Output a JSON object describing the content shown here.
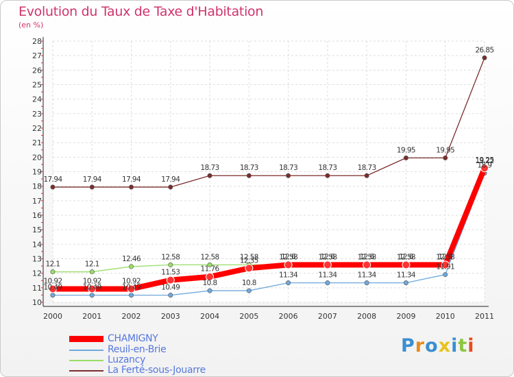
{
  "chart_data": {
    "type": "line",
    "title": "Evolution du Taux de Taxe d'Habitation",
    "subtitle": "(en %)",
    "xlabel": "",
    "ylabel": "",
    "x": [
      "2000",
      "2001",
      "2002",
      "2003",
      "2004",
      "2005",
      "2006",
      "2007",
      "2008",
      "2009",
      "2010",
      "2011"
    ],
    "ylim": [
      10,
      28
    ],
    "yticks": [
      10,
      11,
      12,
      13,
      14,
      15,
      16,
      17,
      18,
      19,
      20,
      21,
      22,
      23,
      24,
      25,
      26,
      27,
      28
    ],
    "grid": true,
    "legend_position": "bottom-left",
    "series": [
      {
        "name": "CHAMIGNY",
        "color": "#ff0000",
        "values": [
          10.92,
          10.92,
          10.92,
          11.53,
          11.76,
          12.35,
          12.58,
          12.58,
          12.58,
          12.58,
          12.58,
          19.25
        ],
        "labels": [
          "10.92",
          "10.92",
          "10.92",
          "11.53",
          "11.76",
          "12.35",
          "12.58",
          "12.58",
          "12.58",
          "12.58",
          "12.58",
          "19.25"
        ]
      },
      {
        "name": "Reuil-en-Brie",
        "color": "#6fa8dc",
        "values": [
          10.49,
          10.49,
          10.49,
          10.49,
          10.8,
          10.8,
          11.34,
          11.34,
          11.34,
          11.34,
          11.91,
          18.9
        ],
        "labels": [
          "10.49",
          "10.49",
          "10.49",
          "10.49",
          "10.8",
          "10.8",
          "11.34",
          "11.34",
          "11.34",
          "11.34",
          "11.91",
          "18.9"
        ]
      },
      {
        "name": "Luzancy",
        "color": "#99dd66",
        "values": [
          12.1,
          12.1,
          12.46,
          12.58,
          12.58,
          12.58,
          12.6,
          12.6,
          12.6,
          12.6,
          12.6,
          19.22
        ],
        "labels": [
          "12.1",
          "12.1",
          "12.46",
          "12.58",
          "12.58",
          "12.58",
          "12.6",
          "12.6",
          "12.6",
          "12.6",
          "12.6",
          "19.22"
        ]
      },
      {
        "name": "La Ferté-sous-Jouarre",
        "color": "#7b2d2d",
        "values": [
          17.94,
          17.94,
          17.94,
          17.94,
          18.73,
          18.73,
          18.73,
          18.73,
          18.73,
          19.95,
          19.95,
          26.85
        ],
        "labels": [
          "17.94",
          "17.94",
          "17.94",
          "17.94",
          "18.73",
          "18.73",
          "18.73",
          "18.73",
          "18.73",
          "19.95",
          "19.95",
          "26.85"
        ]
      }
    ]
  },
  "legend": [
    {
      "label": "CHAMIGNY",
      "color": "#ff0000",
      "text_color": "#5577dd"
    },
    {
      "label": "Reuil-en-Brie",
      "color": "#6fa8dc",
      "text_color": "#5577dd"
    },
    {
      "label": "Luzancy",
      "color": "#99dd66",
      "text_color": "#5577dd"
    },
    {
      "label": "La Ferté-sous-Jouarre",
      "color": "#7b2d2d",
      "text_color": "#5577dd"
    }
  ],
  "logo": {
    "letters": [
      "P",
      "r",
      "o",
      "x",
      "i",
      "t",
      "i"
    ],
    "colors": [
      "#3a8fd0",
      "#e88a1a",
      "#3a8fd0",
      "#e8c31a",
      "#3a8fd0",
      "#8cc63f",
      "#e84b1a"
    ]
  }
}
